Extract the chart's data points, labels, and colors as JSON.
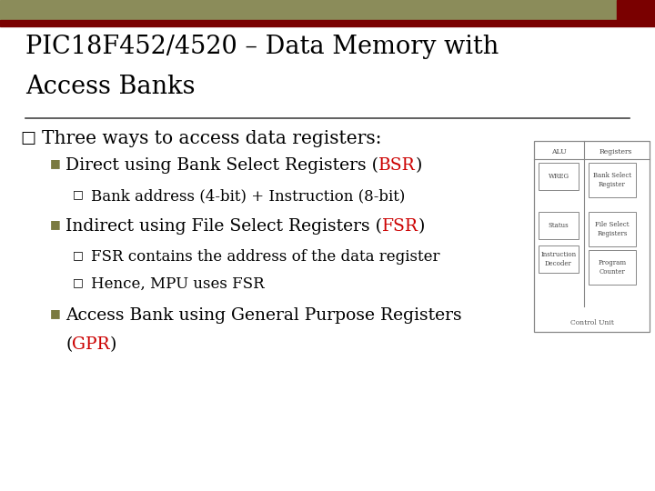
{
  "title_line1": "PIC18F452/4520 – Data Memory with",
  "title_line2": "Access Banks",
  "bg_color": "#ffffff",
  "header_bar_color1": "#8b8c5a",
  "header_bar_color2": "#7a0000",
  "title_color": "#000000",
  "red_color": "#cc0000",
  "olive_color": "#7a7a40",
  "main_bullet": "Three ways to access data registers:",
  "sub1_pre": "Direct using Bank Select Registers (",
  "sub1_red": "BSR",
  "sub1_post": ")",
  "sub1_detail": "Bank address (4-bit) + Instruction (8-bit)",
  "sub2_pre": "Indirect using File Select Registers (",
  "sub2_red": "FSR",
  "sub2_post": ")",
  "sub2_detail1": "FSR contains the address of the data register",
  "sub2_detail2": "Hence, MPU uses FSR",
  "sub3_pre": "Access Bank using General Purpose Registers",
  "sub3_line2_pre": "(",
  "sub3_red": "GPR",
  "sub3_post": ")"
}
